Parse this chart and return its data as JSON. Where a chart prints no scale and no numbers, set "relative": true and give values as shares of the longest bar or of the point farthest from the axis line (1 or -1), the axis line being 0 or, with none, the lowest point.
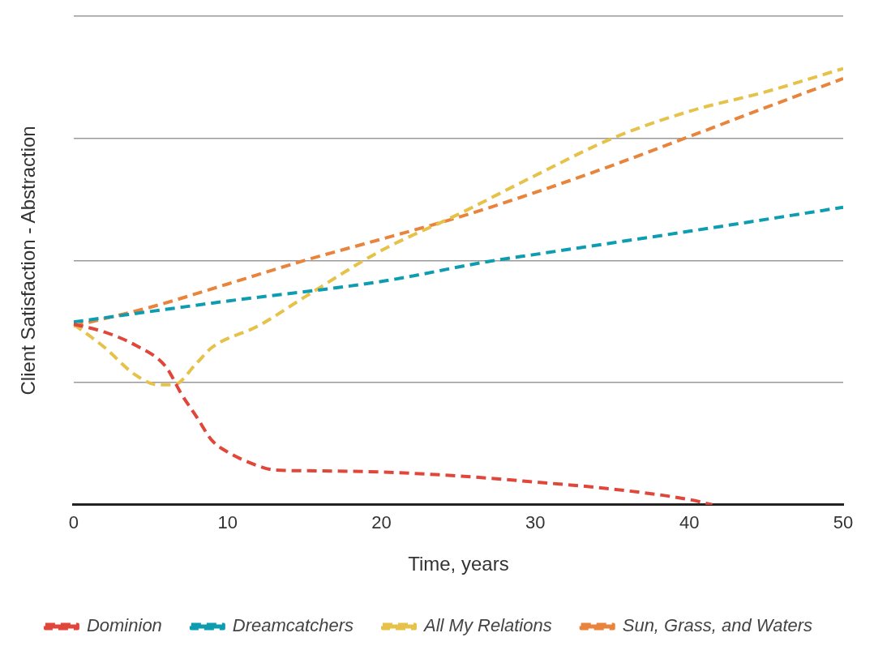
{
  "chart_data": {
    "type": "line",
    "relative": true,
    "xlabel": "Time, years",
    "ylabel": "Client Satisfaction - Abstraction",
    "xlim": [
      0,
      50
    ],
    "xticks": [
      0,
      10,
      20,
      30,
      40,
      50
    ],
    "grid": "y",
    "legend": "bottom",
    "marker": "none",
    "line_style": "dashed",
    "series": [
      {
        "name": "Dominion",
        "color": "#e0463a",
        "x": [
          0,
          2,
          4,
          6,
          7,
          8,
          9,
          10,
          12,
          13,
          15,
          20,
          25,
          30,
          35,
          40,
          41.5
        ],
        "values": [
          0.414,
          0.396,
          0.366,
          0.316,
          0.254,
          0.201,
          0.147,
          0.121,
          0.089,
          0.08,
          0.078,
          0.075,
          0.066,
          0.052,
          0.036,
          0.012,
          0
        ]
      },
      {
        "name": "Dreamcatchers",
        "color": "#0e9db0",
        "x": [
          0,
          10,
          20,
          27,
          30,
          40,
          50
        ],
        "values": [
          0.419,
          0.467,
          0.512,
          0.558,
          0.574,
          0.627,
          0.682
        ]
      },
      {
        "name": "All My Relations",
        "color": "#e6c24a",
        "x": [
          0,
          2,
          4,
          5.5,
          6.5,
          8,
          9,
          12,
          15,
          20,
          25,
          30,
          35,
          40,
          45,
          50
        ],
        "values": [
          0.414,
          0.361,
          0.298,
          0.275,
          0.275,
          0.325,
          0.361,
          0.41,
          0.476,
          0.583,
          0.666,
          0.755,
          0.84,
          0.902,
          0.947,
          1
        ]
      },
      {
        "name": "Sun, Grass, and Waters",
        "color": "#e8843c",
        "x": [
          0,
          5,
          10,
          15,
          20,
          25,
          30,
          35,
          40,
          45,
          50
        ],
        "values": [
          0.41,
          0.453,
          0.506,
          0.56,
          0.609,
          0.659,
          0.716,
          0.778,
          0.844,
          0.911,
          0.977
        ]
      }
    ]
  }
}
